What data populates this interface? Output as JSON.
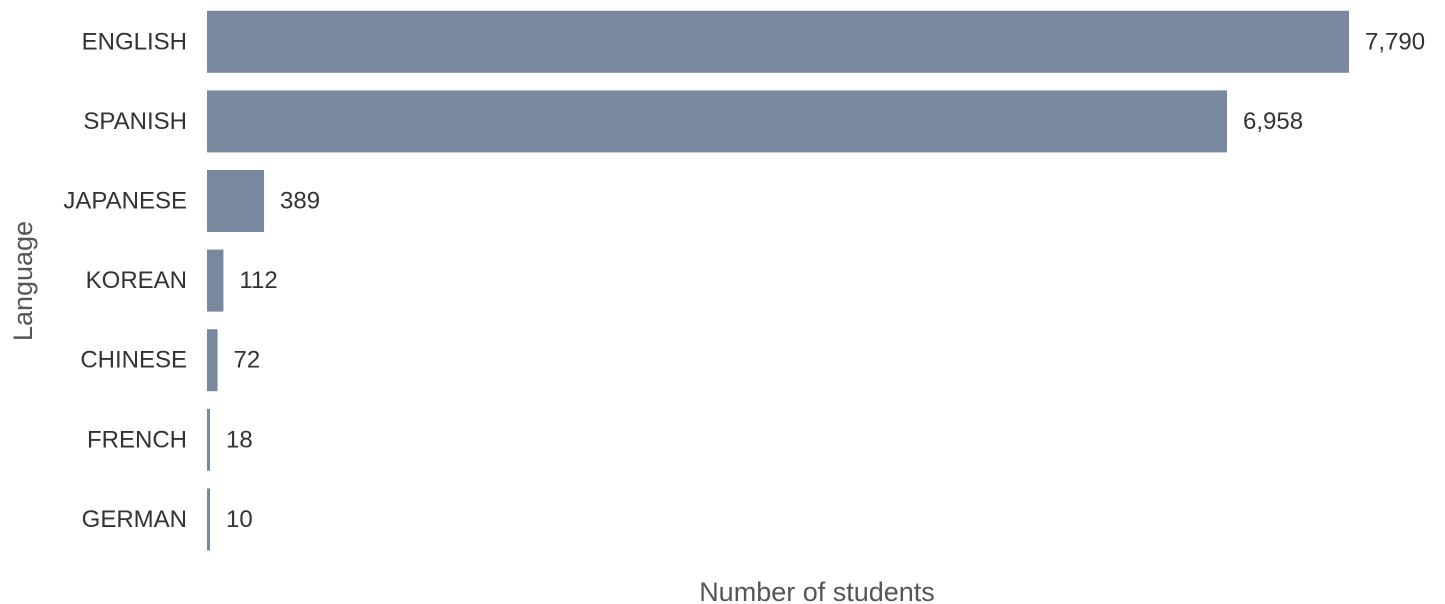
{
  "chart_data": {
    "type": "bar",
    "orientation": "horizontal",
    "title": "",
    "xlabel": "Number of students",
    "ylabel": "Language",
    "categories": [
      "ENGLISH",
      "SPANISH",
      "JAPANESE",
      "KOREAN",
      "CHINESE",
      "FRENCH",
      "GERMAN"
    ],
    "values": [
      7790,
      6958,
      389,
      112,
      72,
      18,
      10
    ],
    "value_labels": [
      "7,790",
      "6,958",
      "389",
      "112",
      "72",
      "18",
      "10"
    ],
    "xlim": [
      0,
      7790
    ],
    "grid": false,
    "legend": "none",
    "bar_color": "#77889f",
    "text_color": "#333333",
    "axis_title_color": "#555555"
  }
}
